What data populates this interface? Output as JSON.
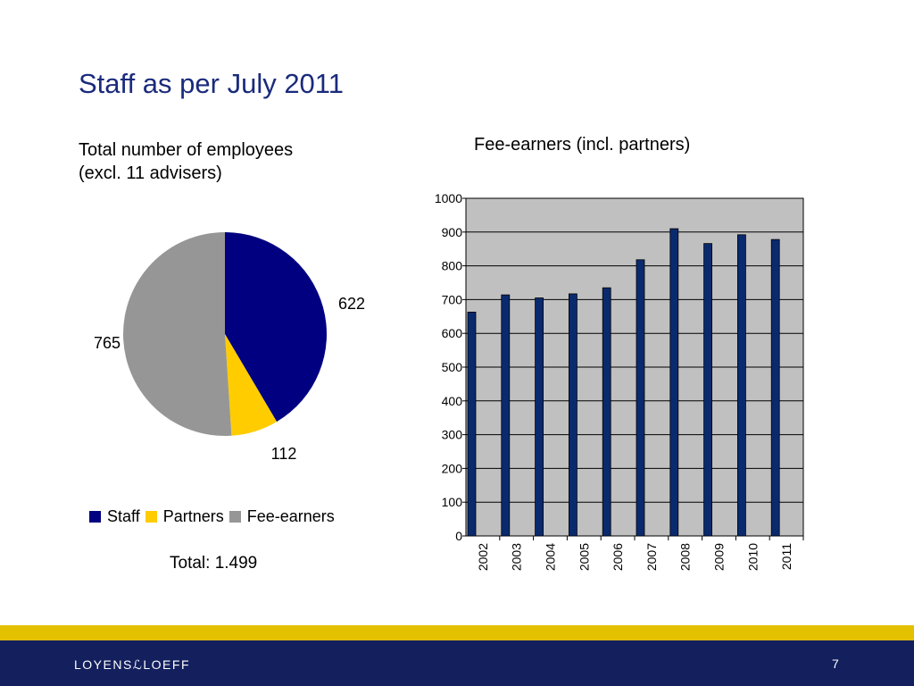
{
  "slide": {
    "title": "Staff as per July 2011",
    "page_number": "7",
    "logo_text": "LOYENSℒLOEFF"
  },
  "colors": {
    "staff": "#000080",
    "partners": "#ffcc00",
    "fee_earners": "#969696",
    "bars": "#0a2a6e",
    "plot_bg": "#c0c0c0",
    "title": "#1a2b7c",
    "footer_stripe": "#e3c000",
    "footer_bar": "#14205e"
  },
  "chart_data": [
    {
      "type": "pie",
      "title_line1": "Total number of employees",
      "title_line2": "(excl. 11 advisers)",
      "categories": [
        "Staff",
        "Partners",
        "Fee-earners"
      ],
      "values": [
        622,
        112,
        765
      ],
      "labels": [
        "622",
        "112",
        "765"
      ],
      "legend": [
        "Staff",
        "Partners",
        "Fee-earners"
      ],
      "legend_position": "bottom",
      "total_label": "Total: 1.499"
    },
    {
      "type": "bar",
      "title": "Fee-earners (incl. partners)",
      "categories": [
        "2002",
        "2003",
        "2004",
        "2005",
        "2006",
        "2007",
        "2008",
        "2009",
        "2010",
        "2011"
      ],
      "values": [
        663,
        714,
        705,
        717,
        735,
        818,
        910,
        866,
        892,
        878
      ],
      "ylim": [
        0,
        1000
      ],
      "yticks": [
        "0",
        "100",
        "200",
        "300",
        "400",
        "500",
        "600",
        "700",
        "800",
        "900",
        "1000"
      ],
      "grid": true
    }
  ]
}
